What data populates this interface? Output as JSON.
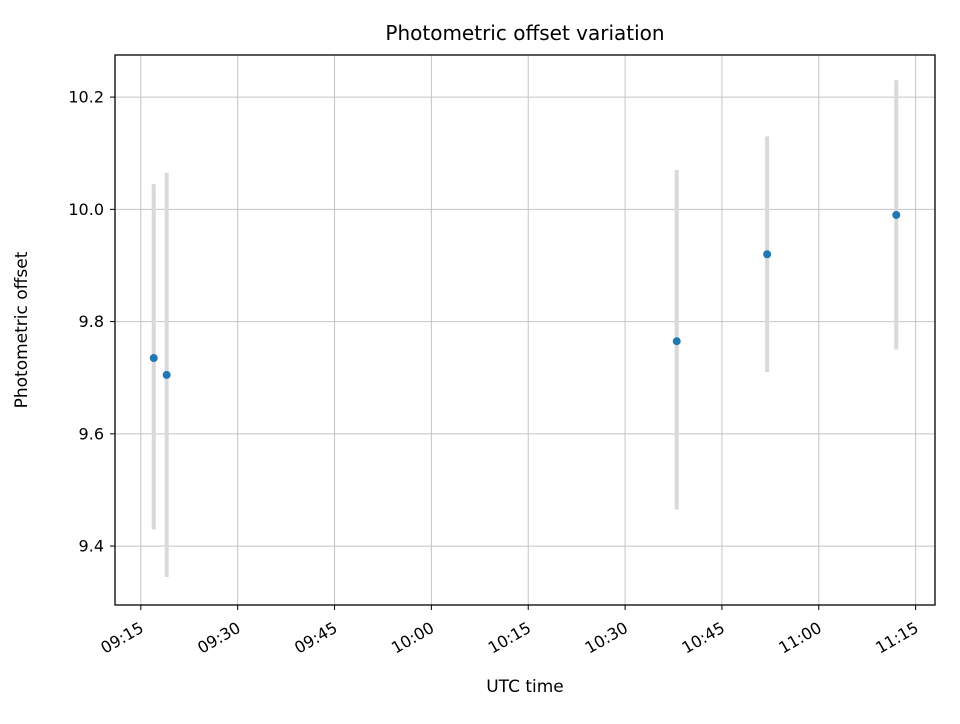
{
  "figure": {
    "background": "#ffffff"
  },
  "chart_data": {
    "type": "scatter",
    "title": "Photometric offset variation",
    "xlabel": "UTC time",
    "ylabel": "Photometric offset",
    "grid": true,
    "legend": "none",
    "x_tick_labels": [
      "09:15",
      "09:30",
      "09:45",
      "10:00",
      "10:15",
      "10:30",
      "10:45",
      "11:00",
      "11:15"
    ],
    "y_ticks": [
      9.4,
      9.6,
      9.8,
      10.0,
      10.2
    ],
    "xlim": [
      "09:11",
      "11:18"
    ],
    "ylim": [
      9.295,
      10.275
    ],
    "colors": {
      "marker": "#1f77b4",
      "errorbar": "#d9d9d9",
      "grid": "#c4c4c4",
      "spine": "#000000"
    },
    "series": [
      {
        "name": "photometric-offset",
        "points": [
          {
            "time": "09:17",
            "value": 9.735,
            "err_low": 9.43,
            "err_high": 10.045
          },
          {
            "time": "09:19",
            "value": 9.705,
            "err_low": 9.345,
            "err_high": 10.065
          },
          {
            "time": "10:38",
            "value": 9.765,
            "err_low": 9.465,
            "err_high": 10.07
          },
          {
            "time": "10:52",
            "value": 9.92,
            "err_low": 9.71,
            "err_high": 10.13
          },
          {
            "time": "11:12",
            "value": 9.99,
            "err_low": 9.75,
            "err_high": 10.23
          }
        ]
      }
    ]
  }
}
